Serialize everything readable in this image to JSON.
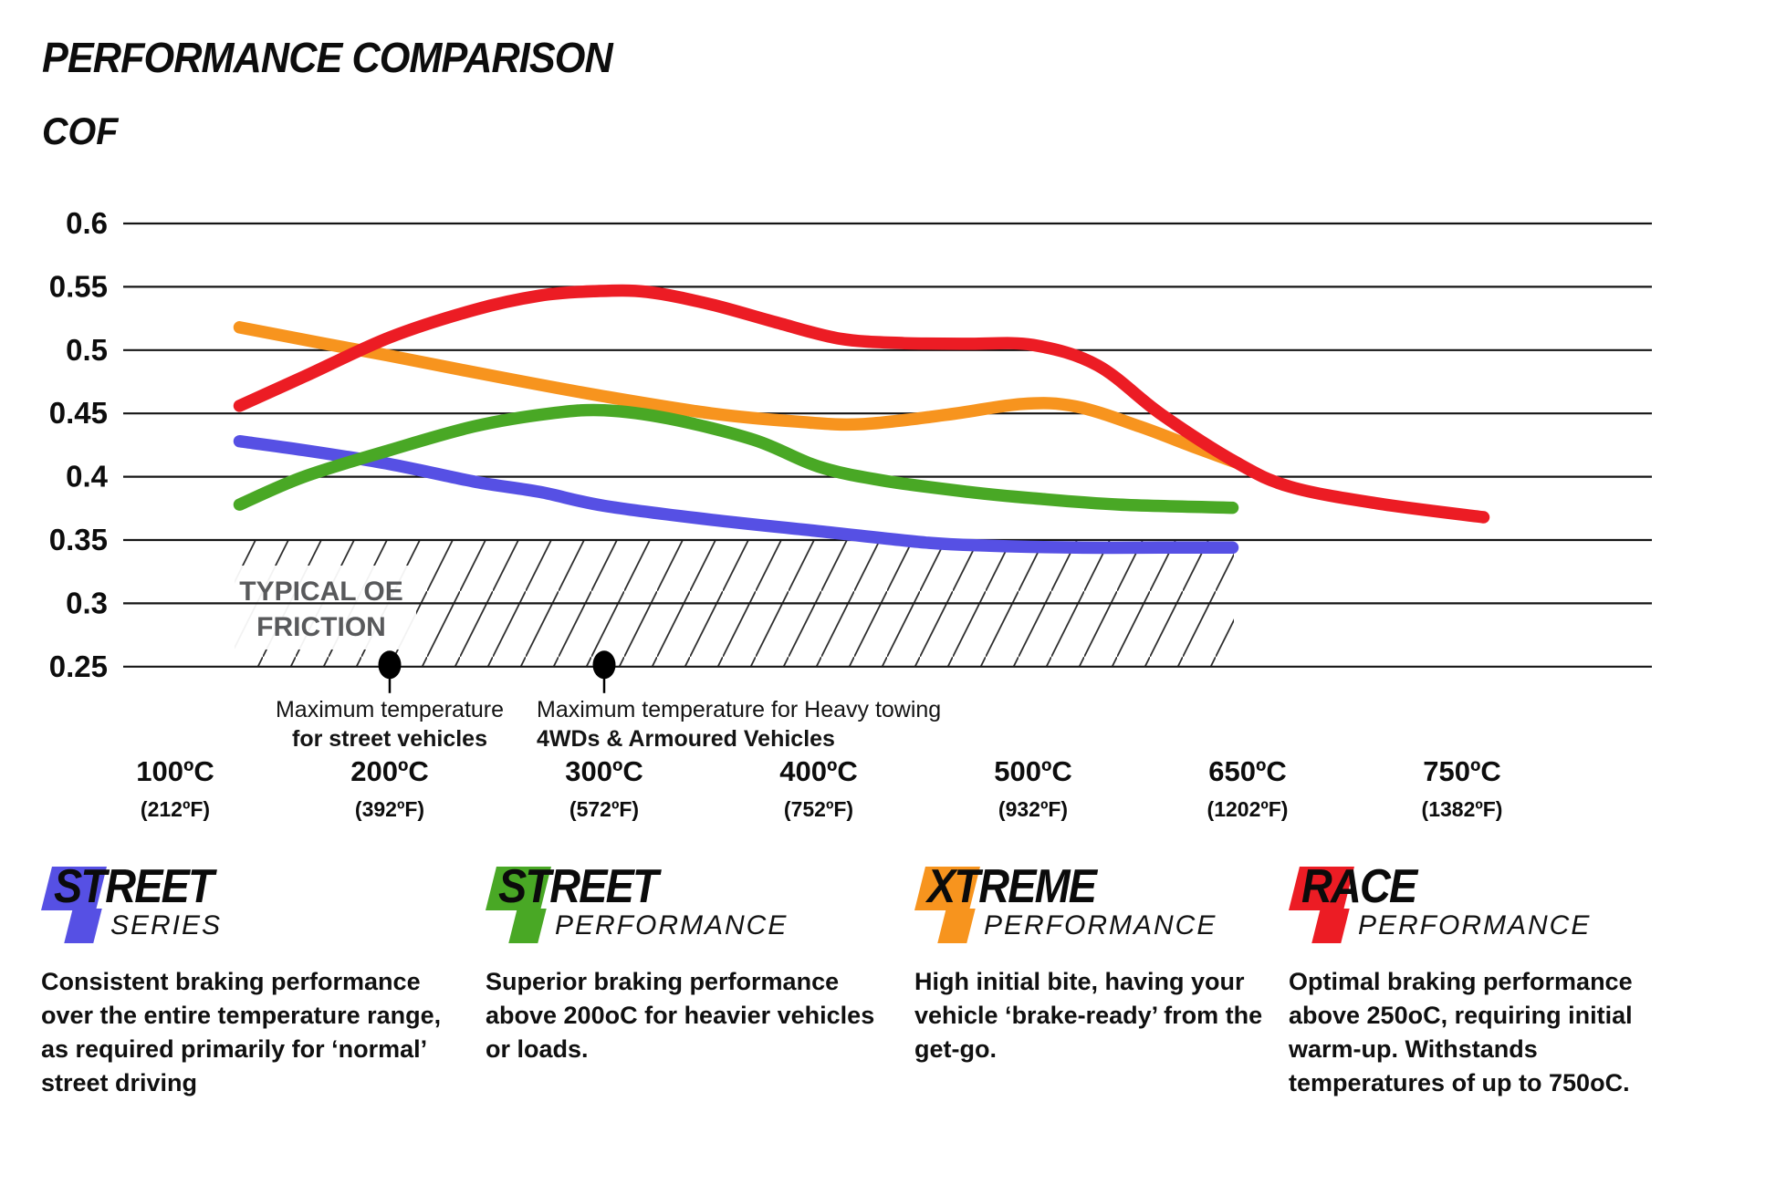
{
  "title": "PERFORMANCE COMPARISON",
  "y_axis_label": "COF",
  "chart_data": {
    "type": "line",
    "title": "PERFORMANCE COMPARISON",
    "ylabel": "COF",
    "grid": true,
    "ylim": [
      0.25,
      0.6
    ],
    "y_ticks": [
      {
        "label": "0.6",
        "value": 0.6
      },
      {
        "label": "0.55",
        "value": 0.55
      },
      {
        "label": "0.5",
        "value": 0.5
      },
      {
        "label": "0.45",
        "value": 0.45
      },
      {
        "label": "0.4",
        "value": 0.4
      },
      {
        "label": "0.35",
        "value": 0.35
      },
      {
        "label": "0.3",
        "value": 0.3
      },
      {
        "label": "0.25",
        "value": 0.25
      }
    ],
    "x_categories": [
      {
        "celsius": "100ºC",
        "fahrenheit": "(212ºF)"
      },
      {
        "celsius": "200ºC",
        "fahrenheit": "(392ºF)"
      },
      {
        "celsius": "300ºC",
        "fahrenheit": "(572ºF)"
      },
      {
        "celsius": "400ºC",
        "fahrenheit": "(752ºF)"
      },
      {
        "celsius": "500ºC",
        "fahrenheit": "(932ºF)"
      },
      {
        "celsius": "650ºC",
        "fahrenheit": "(1202ºF)"
      },
      {
        "celsius": "750ºC",
        "fahrenheit": "(1382ºF)"
      }
    ],
    "x_positions_are_category_indices": true,
    "series": [
      {
        "name": "Street Series",
        "color": "#5650E4",
        "points": [
          [
            0.3,
            0.428
          ],
          [
            0.6,
            0.421
          ],
          [
            1.0,
            0.41
          ],
          [
            1.4,
            0.396
          ],
          [
            1.7,
            0.388
          ],
          [
            2.0,
            0.377
          ],
          [
            2.5,
            0.366
          ],
          [
            3.0,
            0.357
          ],
          [
            3.5,
            0.348
          ],
          [
            3.8,
            0.3455
          ],
          [
            4.2,
            0.344
          ],
          [
            4.6,
            0.344
          ],
          [
            4.93,
            0.344
          ]
        ]
      },
      {
        "name": "Xtreme Performance",
        "color": "#F7941E",
        "points": [
          [
            0.3,
            0.518
          ],
          [
            0.7,
            0.505
          ],
          [
            1.0,
            0.4955
          ],
          [
            1.5,
            0.479
          ],
          [
            2.0,
            0.4635
          ],
          [
            2.5,
            0.45
          ],
          [
            2.9,
            0.4435
          ],
          [
            3.2,
            0.4415
          ],
          [
            3.6,
            0.449
          ],
          [
            3.95,
            0.4575
          ],
          [
            4.2,
            0.4555
          ],
          [
            4.5,
            0.4395
          ],
          [
            4.75,
            0.4235
          ],
          [
            4.95,
            0.411
          ]
        ]
      },
      {
        "name": "Street Performance",
        "color": "#49A825",
        "points": [
          [
            0.3,
            0.378
          ],
          [
            0.6,
            0.4
          ],
          [
            1.0,
            0.421
          ],
          [
            1.4,
            0.44
          ],
          [
            1.75,
            0.45
          ],
          [
            2.0,
            0.4525
          ],
          [
            2.3,
            0.446
          ],
          [
            2.7,
            0.429
          ],
          [
            3.0,
            0.408
          ],
          [
            3.3,
            0.397
          ],
          [
            3.7,
            0.388
          ],
          [
            4.0,
            0.383
          ],
          [
            4.4,
            0.378
          ],
          [
            4.93,
            0.3755
          ]
        ]
      },
      {
        "name": "Race Performance",
        "color": "#EC1C24",
        "points": [
          [
            0.3,
            0.456
          ],
          [
            0.6,
            0.479
          ],
          [
            1.0,
            0.51
          ],
          [
            1.4,
            0.532
          ],
          [
            1.7,
            0.543
          ],
          [
            1.95,
            0.5465
          ],
          [
            2.2,
            0.546
          ],
          [
            2.5,
            0.536
          ],
          [
            2.8,
            0.522
          ],
          [
            3.1,
            0.509
          ],
          [
            3.4,
            0.5055
          ],
          [
            3.7,
            0.505
          ],
          [
            4.0,
            0.504
          ],
          [
            4.3,
            0.488
          ],
          [
            4.6,
            0.449
          ],
          [
            4.95,
            0.411
          ],
          [
            5.2,
            0.392
          ],
          [
            5.6,
            0.379
          ],
          [
            6.1,
            0.368
          ]
        ]
      }
    ],
    "oe_band": {
      "line1": "TYPICAL OE",
      "line2": "FRICTION",
      "cof_range": [
        0.25,
        0.35
      ]
    },
    "annotations": [
      {
        "line1": "Maximum temperature",
        "line2": "for street vehicles",
        "at_category_index": 1,
        "at_cof": 0.25
      },
      {
        "line1": "Maximum temperature for Heavy towing",
        "line2": "4WDs & Armoured Vehicles",
        "at_category_index": 2,
        "at_cof": 0.25
      }
    ]
  },
  "legends": [
    {
      "word": "STREET",
      "sub": "SERIES",
      "color": "#5650E4",
      "description": "Consistent braking performance over the entire temperature range, as required primarily for ‘normal’ street driving"
    },
    {
      "word": "STREET",
      "sub": "PERFORMANCE",
      "color": "#49A825",
      "description": "Superior braking performance above 200oC for heavier vehicles or loads."
    },
    {
      "word": "XTREME",
      "sub": "PERFORMANCE",
      "color": "#F7941E",
      "description": "High initial bite, having your vehicle ‘brake-ready’ from the get-go."
    },
    {
      "word": "RACE",
      "sub": "PERFORMANCE",
      "color": "#EC1C24",
      "description": "Optimal braking performance above 250oC, requiring initial warm-up. Withstands temperatures of up to 750oC."
    }
  ]
}
